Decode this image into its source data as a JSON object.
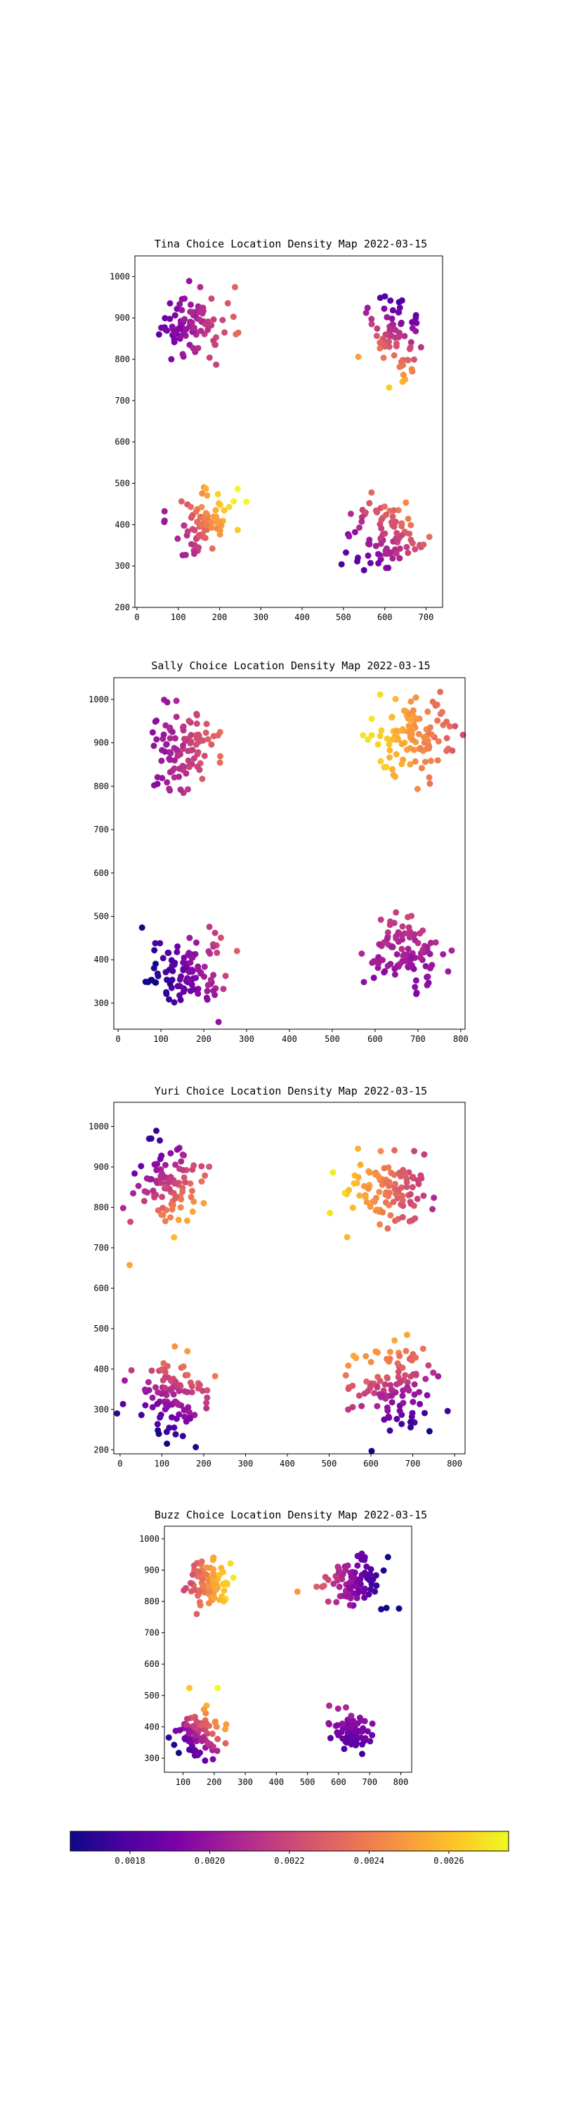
{
  "colorbar": {
    "colormap": "plasma",
    "range": [
      0.00165,
      0.00275
    ],
    "ticks": [
      "0.0018",
      "0.0020",
      "0.0022",
      "0.0024",
      "0.0026"
    ],
    "tick_values": [
      0.0018,
      0.002,
      0.0022,
      0.0024,
      0.0026
    ]
  },
  "chart_data": [
    {
      "type": "scatter",
      "title": "Tina Choice Location Density Map 2022-03-15",
      "xlim": [
        -5,
        740
      ],
      "ylim": [
        200,
        1050
      ],
      "xticks": [
        0,
        100,
        200,
        300,
        400,
        500,
        600,
        700
      ],
      "yticks": [
        200,
        300,
        400,
        500,
        600,
        700,
        800,
        900,
        1000
      ],
      "clusters": [
        {
          "cx": 135,
          "cy": 885,
          "sx": 45,
          "sy": 35,
          "n": 95,
          "c0": 0.00205,
          "cdx": 2.5e-06,
          "cdy": 0.0,
          "seed": 11
        },
        {
          "cx": 625,
          "cy": 855,
          "sx": 35,
          "sy": 50,
          "n": 70,
          "c0": 0.00215,
          "cdx": -2e-06,
          "cdy": -4e-06,
          "seed": 12
        },
        {
          "cx": 165,
          "cy": 415,
          "sx": 35,
          "sy": 40,
          "n": 85,
          "c0": 0.0024,
          "cdx": 4e-06,
          "cdy": 2e-06,
          "seed": 13
        },
        {
          "cx": 600,
          "cy": 375,
          "sx": 45,
          "sy": 45,
          "n": 90,
          "c0": 0.00215,
          "cdx": 2e-06,
          "cdy": 2.5e-06,
          "seed": 14
        }
      ]
    },
    {
      "type": "scatter",
      "title": "Sally Choice Location Density Map 2022-03-15",
      "xlim": [
        -10,
        810
      ],
      "ylim": [
        240,
        1050
      ],
      "xticks": [
        0,
        100,
        200,
        300,
        400,
        500,
        600,
        700,
        800
      ],
      "yticks": [
        300,
        400,
        500,
        600,
        700,
        800,
        900,
        1000
      ],
      "clusters": [
        {
          "cx": 150,
          "cy": 885,
          "sx": 45,
          "sy": 45,
          "n": 100,
          "c0": 0.00212,
          "cdx": 2.5e-06,
          "cdy": 0.0,
          "seed": 21
        },
        {
          "cx": 680,
          "cy": 915,
          "sx": 50,
          "sy": 45,
          "n": 110,
          "c0": 0.0025,
          "cdx": -2e-06,
          "cdy": 0.0,
          "seed": 22
        },
        {
          "cx": 160,
          "cy": 370,
          "sx": 50,
          "sy": 45,
          "n": 110,
          "c0": 0.0019,
          "cdx": 3e-06,
          "cdy": 1e-06,
          "seed": 23
        },
        {
          "cx": 670,
          "cy": 415,
          "sx": 45,
          "sy": 45,
          "n": 100,
          "c0": 0.00205,
          "cdx": 0.0,
          "cdy": 1.5e-06,
          "seed": 24
        }
      ]
    },
    {
      "type": "scatter",
      "title": "Yuri Choice Location Density Map 2022-03-15",
      "xlim": [
        -15,
        825
      ],
      "ylim": [
        190,
        1060
      ],
      "xticks": [
        0,
        100,
        200,
        300,
        400,
        500,
        600,
        700,
        800
      ],
      "yticks": [
        200,
        300,
        400,
        500,
        600,
        700,
        800,
        900,
        1000
      ],
      "clusters": [
        {
          "cx": 115,
          "cy": 850,
          "sx": 40,
          "sy": 55,
          "n": 100,
          "c0": 0.0022,
          "cdx": 2.5e-06,
          "cdy": -3e-06,
          "seed": 31
        },
        {
          "cx": 650,
          "cy": 840,
          "sx": 50,
          "sy": 40,
          "n": 110,
          "c0": 0.00235,
          "cdx": -2.5e-06,
          "cdy": 0.0,
          "seed": 32
        },
        {
          "cx": 120,
          "cy": 330,
          "sx": 45,
          "sy": 55,
          "n": 100,
          "c0": 0.00205,
          "cdx": 1.5e-06,
          "cdy": 3.5e-06,
          "seed": 33
        },
        {
          "cx": 655,
          "cy": 360,
          "sx": 50,
          "sy": 60,
          "n": 110,
          "c0": 0.00215,
          "cdx": -1.5e-06,
          "cdy": 3.5e-06,
          "seed": 34
        }
      ]
    },
    {
      "type": "scatter",
      "title": "Buzz Choice Location Density Map 2022-03-15",
      "xlim": [
        40,
        835
      ],
      "ylim": [
        255,
        1040
      ],
      "xticks": [
        100,
        200,
        300,
        400,
        500,
        600,
        700,
        800
      ],
      "yticks": [
        300,
        400,
        500,
        600,
        700,
        800,
        900,
        1000
      ],
      "clusters": [
        {
          "cx": 180,
          "cy": 860,
          "sx": 35,
          "sy": 30,
          "n": 90,
          "c0": 0.00245,
          "cdx": 3.5e-06,
          "cdy": 0.0,
          "seed": 41
        },
        {
          "cx": 650,
          "cy": 855,
          "sx": 50,
          "sy": 35,
          "n": 90,
          "c0": 0.00195,
          "cdx": -3e-06,
          "cdy": 0.0,
          "seed": 42
        },
        {
          "cx": 150,
          "cy": 375,
          "sx": 35,
          "sy": 45,
          "n": 85,
          "c0": 0.0021,
          "cdx": 3.5e-06,
          "cdy": 4e-06,
          "seed": 43
        },
        {
          "cx": 640,
          "cy": 385,
          "sx": 30,
          "sy": 30,
          "n": 80,
          "c0": 0.0019,
          "cdx": 0.0,
          "cdy": 2e-06,
          "seed": 44
        }
      ]
    }
  ]
}
